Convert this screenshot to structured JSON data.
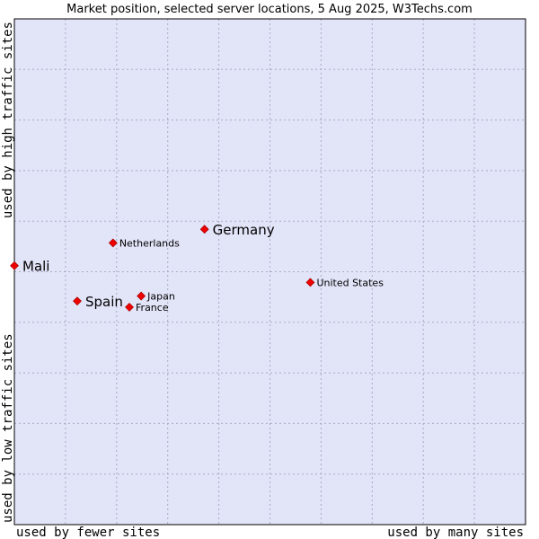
{
  "chart_data": {
    "type": "scatter",
    "title": "Market position, selected server locations, 5 Aug 2025, W3Techs.com",
    "xlabel_left": "used by fewer sites",
    "xlabel_right": "used by many sites",
    "ylabel_bottom": "used by low traffic sites",
    "ylabel_top": "used by high traffic sites",
    "xlim": [
      0,
      10
    ],
    "ylim": [
      0,
      10
    ],
    "grid": true,
    "colors": {
      "plot_background": "#e2e4f8",
      "grid": "#a9abc4",
      "marker": "#ee0000",
      "border": "#000000"
    },
    "points": [
      {
        "name": "Mali",
        "x": 0.0,
        "y": 5.12,
        "emphasis": true
      },
      {
        "name": "Germany",
        "x": 3.72,
        "y": 5.84,
        "emphasis": true
      },
      {
        "name": "Netherlands",
        "x": 1.93,
        "y": 5.57,
        "emphasis": false
      },
      {
        "name": "Spain",
        "x": 1.23,
        "y": 4.42,
        "emphasis": true
      },
      {
        "name": "Japan",
        "x": 2.48,
        "y": 4.52,
        "emphasis": false
      },
      {
        "name": "France",
        "x": 2.25,
        "y": 4.3,
        "emphasis": false
      },
      {
        "name": "United States",
        "x": 5.79,
        "y": 4.79,
        "emphasis": false
      }
    ]
  }
}
